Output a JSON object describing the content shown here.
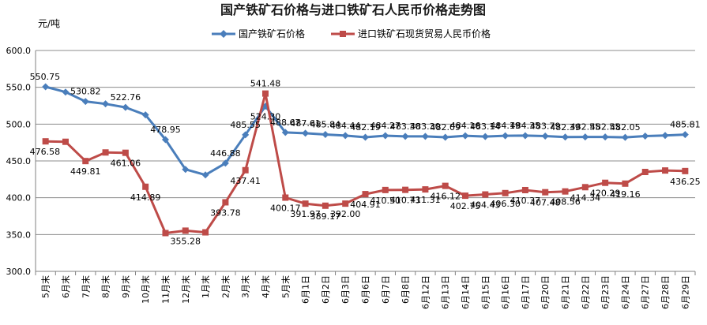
{
  "chart_data": {
    "type": "line",
    "title": "国产铁矿石价格与进口铁矿石人民币价格走势图",
    "ylabel": "元/吨",
    "xlabel": "",
    "ylim": [
      300,
      600
    ],
    "yticks": [
      "300.0",
      "350.0",
      "400.0",
      "450.0",
      "500.0",
      "550.0",
      "600.0"
    ],
    "grid": true,
    "legend": "top-center",
    "categories": [
      "5月末",
      "6月末",
      "7月末",
      "8月末",
      "9月末",
      "10月末",
      "11月末",
      "12月末",
      "1月末",
      "2月末",
      "3月末",
      "4月末",
      "5月末",
      "6月1日",
      "6月2日",
      "6月3日",
      "6月6日",
      "6月7日",
      "6月8日",
      "6月12日",
      "6月13日",
      "6月14日",
      "6月15日",
      "6月16日",
      "6月17日",
      "6月20日",
      "6月21日",
      "6月22日",
      "6月23日",
      "6月24日",
      "6月27日",
      "6月28日",
      "6月29日"
    ],
    "series": [
      {
        "name": "国产铁矿石价格",
        "color": "#4a7ebb",
        "marker": "diamond",
        "values": [
          550.75,
          543.5,
          530.82,
          527.5,
          522.76,
          512.5,
          478.95,
          438.5,
          431.0,
          446.88,
          485.55,
          524.3,
          488.67,
          487.61,
          485.84,
          484.44,
          482.19,
          484.27,
          483.3,
          483.3,
          482.09,
          484.16,
          483.14,
          484.19,
          484.35,
          483.79,
          482.39,
          482.55,
          482.55,
          482.05,
          483.8,
          484.5,
          485.81
        ],
        "labels": [
          "550.75",
          "",
          "530.82",
          "",
          "522.76",
          "",
          "478.95",
          "",
          "",
          "446.88",
          "485.55",
          "524.30",
          "488.67",
          "487.61",
          "485.84",
          "484.44",
          "482.19",
          "484.27",
          "483.30",
          "483.30",
          "482.09",
          "484.16",
          "483.14",
          "484.19",
          "484.35",
          "483.79",
          "482.39",
          "482.55",
          "482.55",
          "482.05",
          "",
          "",
          "485.81"
        ]
      },
      {
        "name": "进口铁矿石现货贸易人民币价格",
        "color": "#be4b48",
        "marker": "square",
        "values": [
          476.58,
          476.0,
          449.81,
          461.5,
          461.06,
          414.89,
          352.0,
          355.28,
          353.0,
          393.78,
          437.41,
          541.48,
          400.17,
          391.97,
          389.17,
          392.0,
          404.91,
          410.5,
          410.73,
          411.31,
          416.12,
          402.75,
          404.43,
          406.3,
          410.37,
          407.48,
          408.56,
          414.34,
          420.29,
          419.16,
          435.0,
          437.0,
          436.25
        ],
        "labels": [
          "476.58",
          "",
          "449.81",
          "",
          "461.06",
          "414.89",
          "",
          "355.28",
          "",
          "393.78",
          "437.41",
          "541.48",
          "400.17",
          "391.97",
          "389.17",
          "392.00",
          "404.91",
          "410.50",
          "410.73",
          "411.31",
          "416.12",
          "402.75",
          "404.43",
          "406.30",
          "410.37",
          "407.48",
          "408.56",
          "414.34",
          "420.29",
          "419.16",
          "",
          "",
          "436.25"
        ]
      }
    ]
  }
}
